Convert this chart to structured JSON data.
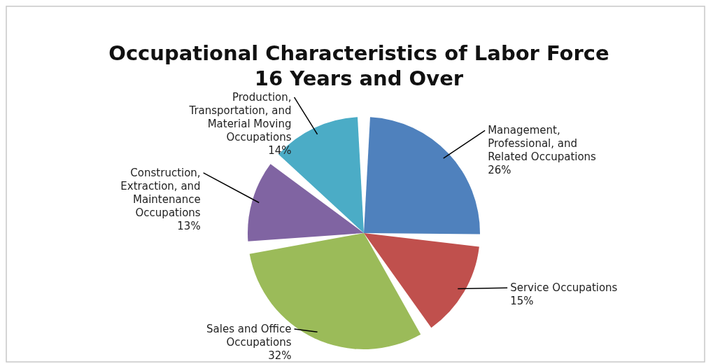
{
  "chart_data": {
    "type": "pie",
    "title": "Occupational Characteristics of Labor Force 16 Years and Over",
    "categories": [
      "Management, Professional, and Related Occupations",
      "Service Occupations",
      "Sales and Office Occupations",
      "Construction, Extraction, and Maintenance Occupations",
      "Production, Transportation, and Material Moving Occupations"
    ],
    "values": [
      26,
      15,
      32,
      13,
      14
    ],
    "colors": [
      "#4f81bd",
      "#c0504d",
      "#9bbb59",
      "#8064a2",
      "#4bacc6"
    ],
    "value_labels": [
      "26%",
      "15%",
      "32%",
      "13%",
      "14%"
    ]
  }
}
